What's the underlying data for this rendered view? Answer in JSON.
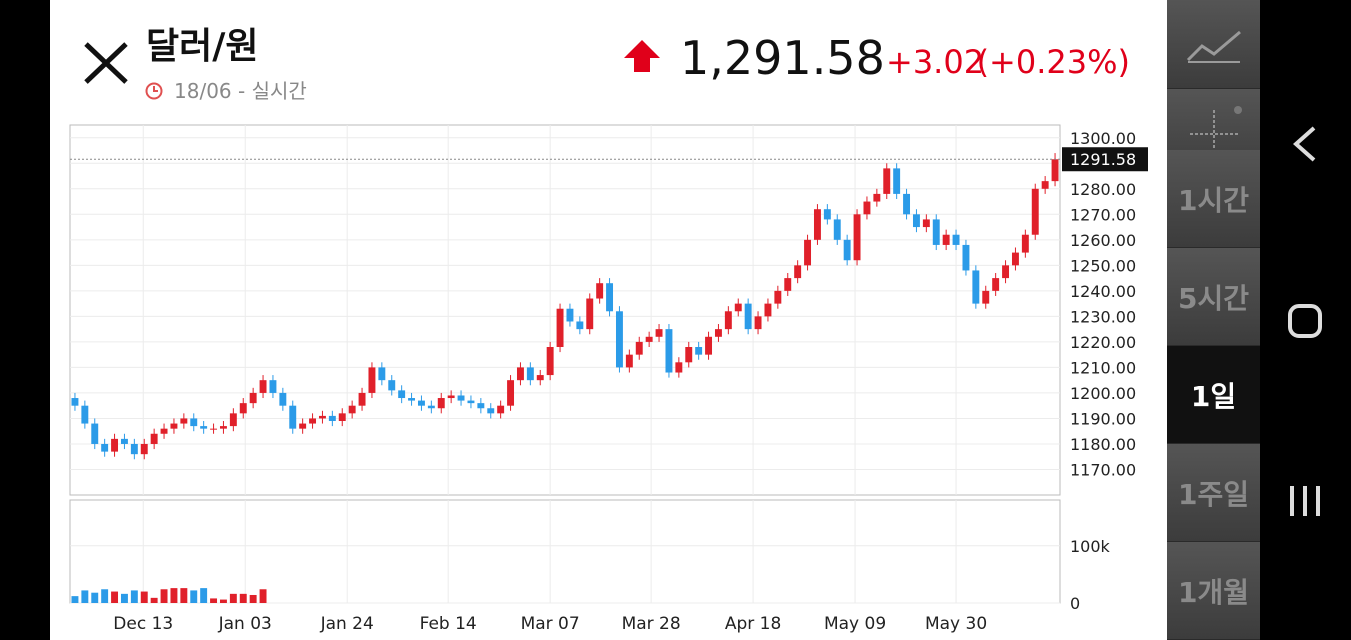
{
  "header": {
    "title": "달러/원",
    "subtitle": "18/06 - 실시간",
    "price": "1,291.58",
    "change": "+3.02",
    "change_pct": "(+0.23%)"
  },
  "sidebar": {
    "items": [
      "1시간",
      "5시간",
      "1일",
      "1주일",
      "1개월"
    ],
    "active": 2
  },
  "chart_data": {
    "type": "candlestick",
    "up_color": "#e0202a",
    "down_color": "#2b9be8",
    "last_price": 1291.58,
    "ylim": [
      1160,
      1305
    ],
    "yticks": [
      {
        "value": 1300,
        "label": "1300.00"
      },
      {
        "value": 1290,
        "label": "1290.00"
      },
      {
        "value": 1280,
        "label": "1280.00"
      },
      {
        "value": 1270,
        "label": "1270.00"
      },
      {
        "value": 1260,
        "label": "1260.00"
      },
      {
        "value": 1250,
        "label": "1250.00"
      },
      {
        "value": 1240,
        "label": "1240.00"
      },
      {
        "value": 1230,
        "label": "1230.00"
      },
      {
        "value": 1220,
        "label": "1220.00"
      },
      {
        "value": 1210,
        "label": "1210.00"
      },
      {
        "value": 1200,
        "label": "1200.00"
      },
      {
        "value": 1190,
        "label": "1190.00"
      },
      {
        "value": 1180,
        "label": "1180.00"
      },
      {
        "value": 1170,
        "label": "1170.00"
      }
    ],
    "xlim": [
      0,
      100
    ],
    "xticks": [
      {
        "value": 7.4,
        "label": "Dec 13"
      },
      {
        "value": 17.7,
        "label": "Jan 03"
      },
      {
        "value": 28,
        "label": "Jan 24"
      },
      {
        "value": 38.2,
        "label": "Feb 14"
      },
      {
        "value": 48.5,
        "label": "Mar 07"
      },
      {
        "value": 58.7,
        "label": "Mar 28"
      },
      {
        "value": 69,
        "label": "Apr 18"
      },
      {
        "value": 79.3,
        "label": "May 09"
      },
      {
        "value": 89.5,
        "label": "May 30"
      }
    ],
    "candles": [
      [
        1198,
        1200,
        1193,
        1195
      ],
      [
        1195,
        1197,
        1186,
        1188
      ],
      [
        1188,
        1190,
        1178,
        1180
      ],
      [
        1180,
        1182,
        1175,
        1177
      ],
      [
        1177,
        1184,
        1175,
        1182
      ],
      [
        1182,
        1184,
        1178,
        1180
      ],
      [
        1180,
        1182,
        1174,
        1176
      ],
      [
        1176,
        1182,
        1174,
        1180
      ],
      [
        1180,
        1186,
        1178,
        1184
      ],
      [
        1184,
        1188,
        1182,
        1186
      ],
      [
        1186,
        1190,
        1184,
        1188
      ],
      [
        1188,
        1192,
        1186,
        1190
      ],
      [
        1190,
        1192,
        1185,
        1187
      ],
      [
        1187,
        1189,
        1184,
        1186
      ],
      [
        1186,
        1188,
        1184,
        1186
      ],
      [
        1186,
        1189,
        1184,
        1187
      ],
      [
        1187,
        1194,
        1185,
        1192
      ],
      [
        1192,
        1198,
        1190,
        1196
      ],
      [
        1196,
        1202,
        1194,
        1200
      ],
      [
        1200,
        1207,
        1198,
        1205
      ],
      [
        1205,
        1207,
        1198,
        1200
      ],
      [
        1200,
        1202,
        1193,
        1195
      ],
      [
        1195,
        1197,
        1184,
        1186
      ],
      [
        1186,
        1190,
        1184,
        1188
      ],
      [
        1188,
        1192,
        1186,
        1190
      ],
      [
        1190,
        1193,
        1188,
        1191
      ],
      [
        1191,
        1193,
        1187,
        1189
      ],
      [
        1189,
        1194,
        1187,
        1192
      ],
      [
        1192,
        1197,
        1190,
        1195
      ],
      [
        1195,
        1202,
        1193,
        1200
      ],
      [
        1200,
        1212,
        1198,
        1210
      ],
      [
        1210,
        1212,
        1203,
        1205
      ],
      [
        1205,
        1207,
        1199,
        1201
      ],
      [
        1201,
        1203,
        1196,
        1198
      ],
      [
        1198,
        1200,
        1195,
        1197
      ],
      [
        1197,
        1199,
        1193,
        1195
      ],
      [
        1195,
        1197,
        1192,
        1194
      ],
      [
        1194,
        1200,
        1192,
        1198
      ],
      [
        1198,
        1201,
        1196,
        1199
      ],
      [
        1199,
        1201,
        1195,
        1197
      ],
      [
        1197,
        1199,
        1194,
        1196
      ],
      [
        1196,
        1198,
        1192,
        1194
      ],
      [
        1194,
        1196,
        1190,
        1192
      ],
      [
        1192,
        1197,
        1190,
        1195
      ],
      [
        1195,
        1207,
        1193,
        1205
      ],
      [
        1205,
        1212,
        1203,
        1210
      ],
      [
        1210,
        1212,
        1203,
        1205
      ],
      [
        1205,
        1209,
        1203,
        1207
      ],
      [
        1207,
        1220,
        1205,
        1218
      ],
      [
        1218,
        1235,
        1216,
        1233
      ],
      [
        1233,
        1235,
        1226,
        1228
      ],
      [
        1228,
        1230,
        1223,
        1225
      ],
      [
        1225,
        1239,
        1223,
        1237
      ],
      [
        1237,
        1245,
        1235,
        1243
      ],
      [
        1243,
        1245,
        1230,
        1232
      ],
      [
        1232,
        1234,
        1208,
        1210
      ],
      [
        1210,
        1217,
        1208,
        1215
      ],
      [
        1215,
        1222,
        1213,
        1220
      ],
      [
        1220,
        1224,
        1218,
        1222
      ],
      [
        1222,
        1227,
        1220,
        1225
      ],
      [
        1225,
        1227,
        1206,
        1208
      ],
      [
        1208,
        1214,
        1206,
        1212
      ],
      [
        1212,
        1220,
        1210,
        1218
      ],
      [
        1218,
        1220,
        1213,
        1215
      ],
      [
        1215,
        1224,
        1213,
        1222
      ],
      [
        1222,
        1227,
        1220,
        1225
      ],
      [
        1225,
        1234,
        1223,
        1232
      ],
      [
        1232,
        1237,
        1230,
        1235
      ],
      [
        1235,
        1237,
        1223,
        1225
      ],
      [
        1225,
        1232,
        1223,
        1230
      ],
      [
        1230,
        1237,
        1228,
        1235
      ],
      [
        1235,
        1242,
        1233,
        1240
      ],
      [
        1240,
        1247,
        1238,
        1245
      ],
      [
        1245,
        1252,
        1243,
        1250
      ],
      [
        1250,
        1262,
        1248,
        1260
      ],
      [
        1260,
        1274,
        1258,
        1272
      ],
      [
        1272,
        1274,
        1266,
        1268
      ],
      [
        1268,
        1270,
        1258,
        1260
      ],
      [
        1260,
        1262,
        1250,
        1252
      ],
      [
        1252,
        1272,
        1250,
        1270
      ],
      [
        1270,
        1277,
        1268,
        1275
      ],
      [
        1275,
        1280,
        1273,
        1278
      ],
      [
        1278,
        1290,
        1276,
        1288
      ],
      [
        1288,
        1290,
        1276,
        1278
      ],
      [
        1278,
        1280,
        1268,
        1270
      ],
      [
        1270,
        1272,
        1263,
        1265
      ],
      [
        1265,
        1270,
        1263,
        1268
      ],
      [
        1268,
        1270,
        1256,
        1258
      ],
      [
        1258,
        1264,
        1256,
        1262
      ],
      [
        1262,
        1264,
        1256,
        1258
      ],
      [
        1258,
        1260,
        1246,
        1248
      ],
      [
        1248,
        1250,
        1233,
        1235
      ],
      [
        1235,
        1242,
        1233,
        1240
      ],
      [
        1240,
        1247,
        1238,
        1245
      ],
      [
        1245,
        1252,
        1243,
        1250
      ],
      [
        1250,
        1257,
        1248,
        1255
      ],
      [
        1255,
        1264,
        1253,
        1262
      ],
      [
        1262,
        1282,
        1260,
        1280
      ],
      [
        1280,
        1285,
        1278,
        1283
      ],
      [
        1283,
        1294,
        1281,
        1291.58
      ]
    ],
    "volume_ylim": [
      0,
      180000
    ],
    "volume_yticks": [
      {
        "value": 100000,
        "label": "100k"
      },
      0
    ],
    "volume": [
      12000,
      22000,
      18000,
      24000,
      20000,
      16000,
      22000,
      20000,
      9000,
      24000,
      26000,
      26000,
      22000,
      26000,
      8000,
      6000,
      16000,
      16000,
      14000,
      24000,
      null,
      null,
      null,
      null,
      null,
      null,
      null,
      null,
      null,
      null,
      null,
      null,
      null,
      null,
      null,
      null,
      null,
      null,
      null,
      null,
      null,
      null,
      null,
      null,
      null,
      null,
      null,
      null,
      null,
      null,
      null,
      null,
      null,
      null,
      null,
      null,
      null,
      null,
      null,
      null,
      null,
      null,
      null,
      null,
      null,
      null,
      null,
      null,
      null,
      null,
      null,
      null,
      null,
      null,
      null,
      null,
      null,
      null,
      null,
      null,
      null,
      null,
      null,
      null,
      null,
      null,
      null,
      null,
      null,
      null,
      null,
      null,
      null,
      null,
      null,
      null,
      null,
      null,
      null,
      null
    ]
  }
}
